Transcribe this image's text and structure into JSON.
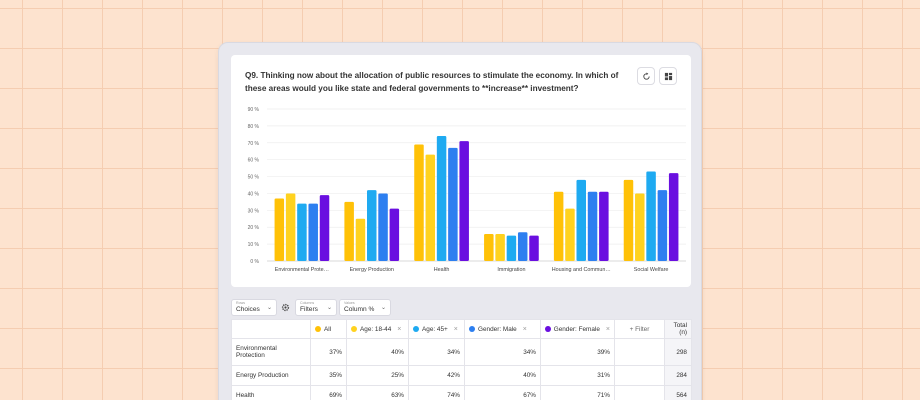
{
  "question": "Q9. Thinking now about the allocation of public resources to stimulate the economy.  In which of these areas would you like state and federal governments to **increase** investment?",
  "icons": {
    "refresh": "refresh-icon",
    "layout": "layout-grid-icon",
    "settings": "gear-icon"
  },
  "controls": {
    "rows": {
      "small": "Rows",
      "value": "Choices"
    },
    "filters": {
      "small": "Columns",
      "value": "Filters"
    },
    "values": {
      "small": "Values",
      "value": "Column %"
    }
  },
  "colors": {
    "all": "#FFC107",
    "age_18_44": "#FFD21F",
    "age_45_plus": "#1EAAF1",
    "male": "#2D7FF0",
    "female": "#6A0FE0"
  },
  "chart_data": {
    "type": "bar",
    "categories": [
      "Environmental Prote…",
      "Energy Production",
      "Health",
      "Immigration",
      "Housing and Commun…",
      "Social Welfare"
    ],
    "series": [
      {
        "name": "All",
        "values": [
          37,
          35,
          69,
          16,
          41,
          48
        ]
      },
      {
        "name": "Age: 18-44",
        "values": [
          40,
          25,
          63,
          16,
          31,
          40
        ]
      },
      {
        "name": "Age: 45+",
        "values": [
          34,
          42,
          74,
          15,
          48,
          53
        ]
      },
      {
        "name": "Gender: Male",
        "values": [
          34,
          40,
          67,
          17,
          41,
          42
        ]
      },
      {
        "name": "Gender: Female",
        "values": [
          39,
          31,
          71,
          15,
          41,
          52
        ]
      }
    ],
    "yticks": [
      "0 %",
      "10 %",
      "20 %",
      "30 %",
      "40 %",
      "50 %",
      "60 %",
      "70 %",
      "80 %",
      "90 %"
    ],
    "ylim": [
      0,
      90
    ],
    "grid": true
  },
  "table": {
    "headers": [
      "All",
      "Age: 18-44",
      "Age: 45+",
      "Gender: Male",
      "Gender: Female"
    ],
    "filter_label": "+ Filter",
    "total_label": "Total (n)",
    "rows": [
      {
        "label": "Environmental Protection",
        "values": [
          "37%",
          "40%",
          "34%",
          "34%",
          "39%"
        ],
        "total": "298"
      },
      {
        "label": "Energy Production",
        "values": [
          "35%",
          "25%",
          "42%",
          "40%",
          "31%"
        ],
        "total": "284"
      },
      {
        "label": "Health",
        "values": [
          "69%",
          "63%",
          "74%",
          "67%",
          "71%"
        ],
        "total": "564"
      }
    ]
  }
}
